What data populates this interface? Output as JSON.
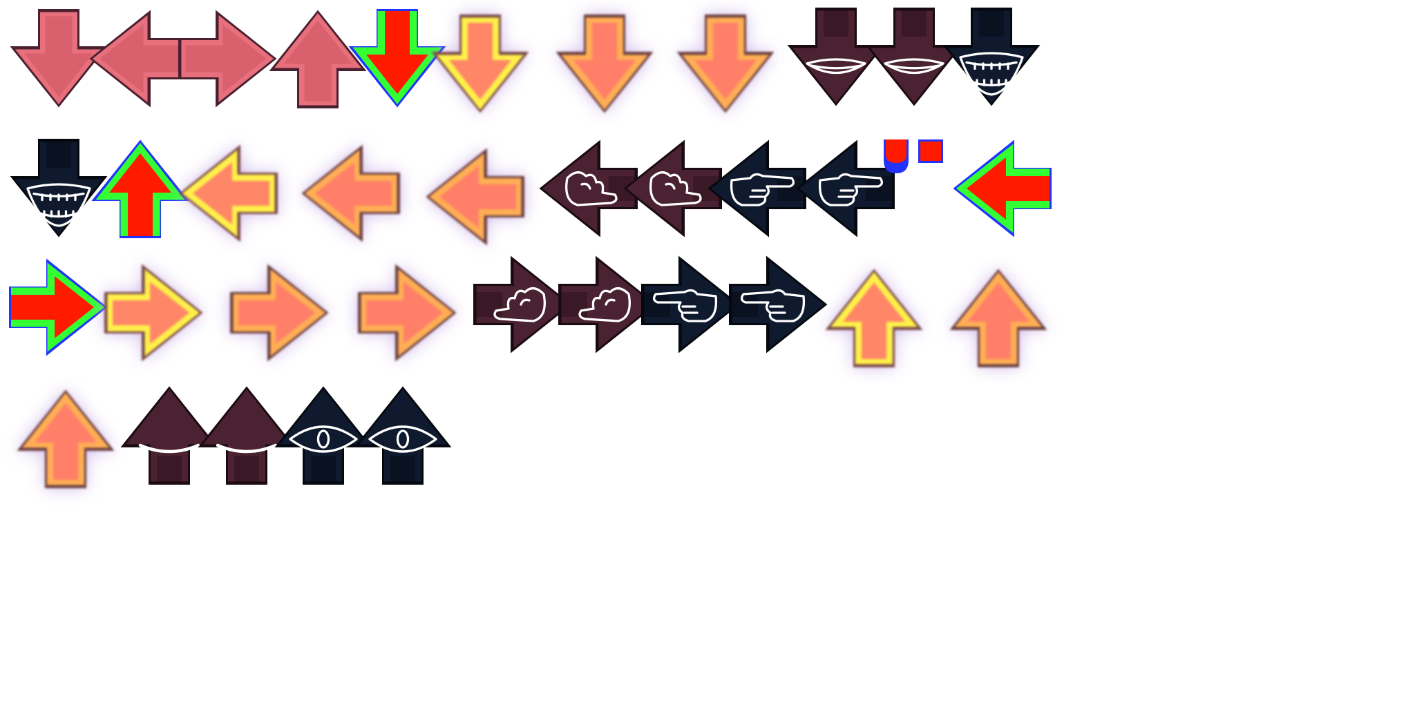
{
  "sheet": {
    "background": "#ffffff",
    "sprites": [
      {
        "name": "purple-down-static-arrow",
        "dir": "down",
        "style": "static"
      },
      {
        "name": "purple-left-static-arrow",
        "dir": "left",
        "style": "static"
      },
      {
        "name": "purple-right-static-arrow",
        "dir": "right",
        "style": "static"
      },
      {
        "name": "purple-up-static-arrow",
        "dir": "up",
        "style": "static"
      },
      {
        "name": "down-note-arrow",
        "dir": "down",
        "style": "note"
      },
      {
        "name": "down-confirm-frame-1-arrow",
        "dir": "down",
        "style": "confirm-bright"
      },
      {
        "name": "down-confirm-frame-2-arrow",
        "dir": "down",
        "style": "confirm"
      },
      {
        "name": "down-confirm-frame-3-arrow",
        "dir": "down",
        "style": "confirm"
      },
      {
        "name": "down-mouth-press-1-arrow",
        "dir": "down",
        "style": "maroon",
        "glyph": "mouth-closed"
      },
      {
        "name": "down-mouth-press-2-arrow",
        "dir": "down",
        "style": "maroon",
        "glyph": "mouth-closed"
      },
      {
        "name": "down-mouth-press-3-arrow",
        "dir": "down",
        "style": "navy",
        "glyph": "mouth-open"
      },
      {
        "name": "down-mouth-press-4-arrow",
        "dir": "down",
        "style": "navy",
        "glyph": "mouth-open"
      },
      {
        "name": "up-note-arrow",
        "dir": "up",
        "style": "note"
      },
      {
        "name": "left-confirm-frame-1-arrow",
        "dir": "left",
        "style": "confirm-bright"
      },
      {
        "name": "left-confirm-frame-2-arrow",
        "dir": "left",
        "style": "confirm"
      },
      {
        "name": "left-confirm-frame-3-arrow",
        "dir": "left",
        "style": "confirm"
      },
      {
        "name": "left-hand-press-1-arrow",
        "dir": "left",
        "style": "maroon",
        "glyph": "hand-curl"
      },
      {
        "name": "left-hand-press-2-arrow",
        "dir": "left",
        "style": "maroon",
        "glyph": "hand-curl"
      },
      {
        "name": "left-hand-press-3-arrow",
        "dir": "left",
        "style": "navy",
        "glyph": "hand-point"
      },
      {
        "name": "left-hand-press-4-arrow",
        "dir": "left",
        "style": "navy",
        "glyph": "hand-point"
      },
      {
        "name": "left-note-arrow",
        "dir": "left",
        "style": "note"
      },
      {
        "name": "right-note-arrow",
        "dir": "right",
        "style": "note"
      },
      {
        "name": "right-confirm-frame-1-arrow",
        "dir": "right",
        "style": "confirm-bright"
      },
      {
        "name": "right-confirm-frame-2-arrow",
        "dir": "right",
        "style": "confirm"
      },
      {
        "name": "right-confirm-frame-3-arrow",
        "dir": "right",
        "style": "confirm"
      },
      {
        "name": "right-hand-press-1-arrow",
        "dir": "right",
        "style": "maroon",
        "glyph": "hand-curl"
      },
      {
        "name": "right-hand-press-2-arrow",
        "dir": "right",
        "style": "maroon",
        "glyph": "hand-curl"
      },
      {
        "name": "right-hand-press-3-arrow",
        "dir": "right",
        "style": "navy",
        "glyph": "hand-point"
      },
      {
        "name": "right-hand-press-4-arrow",
        "dir": "right",
        "style": "navy",
        "glyph": "hand-point"
      },
      {
        "name": "up-confirm-frame-1-arrow",
        "dir": "up",
        "style": "confirm-bright"
      },
      {
        "name": "up-confirm-frame-2-arrow",
        "dir": "up",
        "style": "confirm"
      },
      {
        "name": "up-confirm-frame-3-arrow",
        "dir": "up",
        "style": "confirm"
      },
      {
        "name": "up-eye-press-1-arrow",
        "dir": "up",
        "style": "maroon",
        "glyph": "eye-closed"
      },
      {
        "name": "up-eye-press-2-arrow",
        "dir": "up",
        "style": "maroon",
        "glyph": "eye-closed"
      },
      {
        "name": "up-eye-press-3-arrow",
        "dir": "up",
        "style": "navy",
        "glyph": "eye-open"
      },
      {
        "name": "up-eye-press-4-arrow",
        "dir": "up",
        "style": "navy",
        "glyph": "eye-open"
      }
    ],
    "palette": {
      "static": {
        "fill": "#e8707c",
        "inner": "#d9606d",
        "edge": "#4a2030"
      },
      "note": {
        "fill": "#ff1a00",
        "inner": "#33ff33",
        "edge": "#2233ff"
      },
      "confirm-bright": {
        "fill": "#ff7a6a",
        "inner": "#fff04a",
        "edge": "#7a4a4a"
      },
      "confirm": {
        "fill": "#ff7a6a",
        "inner": "#ffae55",
        "edge": "#6a4040"
      },
      "maroon": {
        "fill": "#4a2232",
        "inner": "#3a1826",
        "edge": "#1a0a12"
      },
      "navy": {
        "fill": "#0f1a2e",
        "inner": "#0a1222",
        "edge": "#05080f"
      },
      "hold": {
        "fill": "#ff1a00",
        "edge": "#2233ff"
      }
    }
  }
}
